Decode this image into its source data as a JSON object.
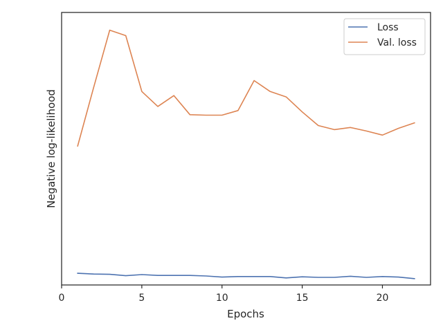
{
  "chart_data": {
    "type": "line",
    "title": "",
    "xlabel": "Epochs",
    "ylabel": "Negative log-likelihood",
    "xlim": [
      0,
      23
    ],
    "ylim": [
      0,
      100
    ],
    "x_ticks": [
      0,
      5,
      10,
      15,
      20
    ],
    "y_ticks_visible": false,
    "grid": false,
    "legend": "top-right",
    "x": [
      1,
      2,
      3,
      4,
      5,
      6,
      7,
      8,
      9,
      10,
      11,
      12,
      13,
      14,
      15,
      16,
      17,
      18,
      19,
      20,
      21,
      22
    ],
    "series": [
      {
        "name": "Loss",
        "color": "#4c72b0",
        "values": [
          4.3,
          4.0,
          3.9,
          3.4,
          3.8,
          3.5,
          3.5,
          3.5,
          3.3,
          2.9,
          3.1,
          3.1,
          3.1,
          2.6,
          3.0,
          2.8,
          2.8,
          3.2,
          2.8,
          3.1,
          2.9,
          2.3
        ]
      },
      {
        "name": "Val. loss",
        "color": "#dd8452",
        "values": [
          51.0,
          72.5,
          93.5,
          91.5,
          71.0,
          65.5,
          69.5,
          62.5,
          62.3,
          62.3,
          64.0,
          75.0,
          71.0,
          69.0,
          63.5,
          58.5,
          57.0,
          57.8,
          56.5,
          55.0,
          57.5,
          59.5
        ]
      }
    ]
  }
}
